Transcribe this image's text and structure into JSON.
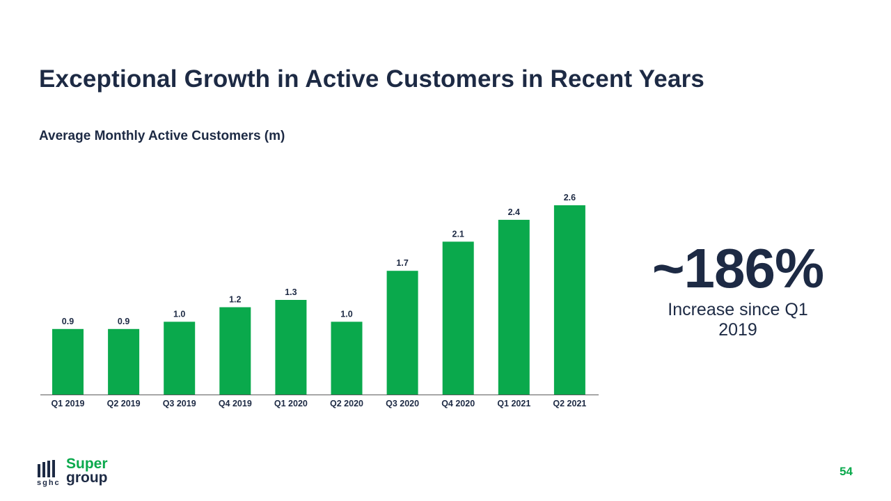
{
  "slide": {
    "title": "Exceptional Growth in Active Customers in Recent Years",
    "page_number": "54"
  },
  "kpi": {
    "value": "~186%",
    "caption_line1": "Increase since Q1",
    "caption_line2": "2019"
  },
  "logo": {
    "name_line1": "Super",
    "name_line2": "group",
    "abbreviation": "sghc",
    "icon": "bars-logo-icon"
  },
  "colors": {
    "bar": "#0aa94c",
    "text_dark": "#1d2a44",
    "brand_green": "#0aa94c"
  },
  "chart_data": {
    "type": "bar",
    "title": "Average Monthly Active Customers (m)",
    "xlabel": "",
    "ylabel": "",
    "categories": [
      "Q1 2019",
      "Q2 2019",
      "Q3 2019",
      "Q4 2019",
      "Q1 2020",
      "Q2 2020",
      "Q3 2020",
      "Q4 2020",
      "Q1 2021",
      "Q2 2021"
    ],
    "values": [
      0.9,
      0.9,
      1.0,
      1.2,
      1.3,
      1.0,
      1.7,
      2.1,
      2.4,
      2.6
    ],
    "value_labels": [
      "0.9",
      "0.9",
      "1.0",
      "1.2",
      "1.3",
      "1.0",
      "1.7",
      "2.1",
      "2.4",
      "2.6"
    ],
    "ylim": [
      0,
      2.6
    ],
    "grid": false,
    "legend": "none"
  }
}
